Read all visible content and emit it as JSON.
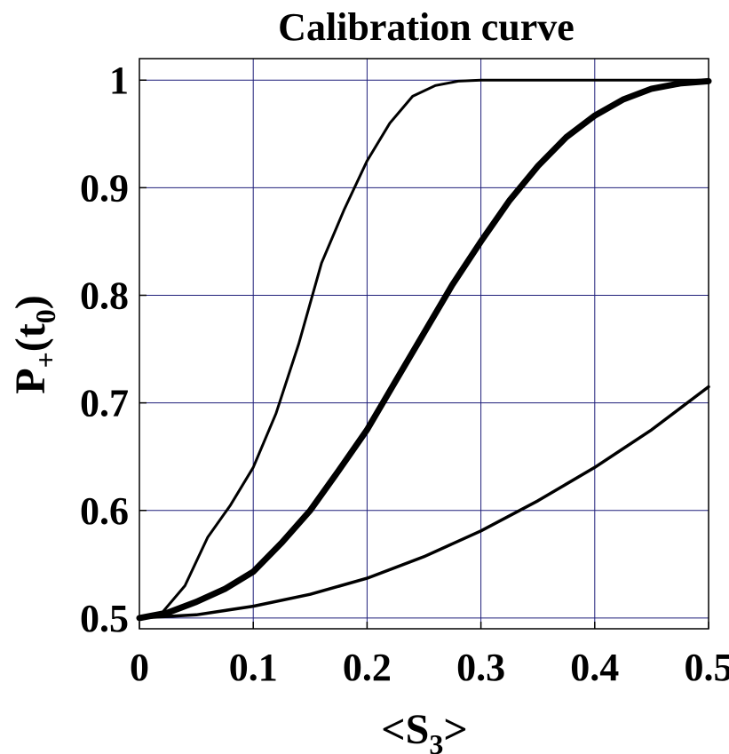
{
  "chart_data": {
    "type": "line",
    "title": "Calibration curve",
    "xlabel": {
      "base": "<S",
      "sub": "3",
      "tail": ">"
    },
    "ylabel": {
      "base": "P",
      "sub": "+",
      "tail": "(t",
      "sub2": "0",
      "tail2": ")"
    },
    "xlim": [
      0,
      0.5
    ],
    "ylim": [
      0.49,
      1.02
    ],
    "grid": true,
    "grid_color": "#1f1f7a",
    "line_color": "#000000",
    "xticks": [
      {
        "value": 0,
        "label": "0"
      },
      {
        "value": 0.1,
        "label": "0.1"
      },
      {
        "value": 0.2,
        "label": "0.2"
      },
      {
        "value": 0.3,
        "label": "0.3"
      },
      {
        "value": 0.4,
        "label": "0.4"
      },
      {
        "value": 0.5,
        "label": "0.5"
      }
    ],
    "yticks": [
      {
        "value": 0.5,
        "label": "0.5"
      },
      {
        "value": 0.6,
        "label": "0.6"
      },
      {
        "value": 0.7,
        "label": "0.7"
      },
      {
        "value": 0.8,
        "label": "0.8"
      },
      {
        "value": 0.9,
        "label": "0.9"
      },
      {
        "value": 1.0,
        "label": "1"
      }
    ],
    "series": [
      {
        "weight": "thin",
        "x": [
          0,
          0.02,
          0.04,
          0.06,
          0.08,
          0.1,
          0.12,
          0.14,
          0.16,
          0.18,
          0.2,
          0.22,
          0.24,
          0.26,
          0.28,
          0.3,
          0.35,
          0.4,
          0.45,
          0.5
        ],
        "y": [
          0.5,
          0.505,
          0.53,
          0.575,
          0.605,
          0.64,
          0.69,
          0.755,
          0.83,
          0.88,
          0.925,
          0.96,
          0.985,
          0.995,
          0.999,
          1.0,
          1.0,
          1.0,
          1.0,
          1.0
        ]
      },
      {
        "weight": "thick",
        "x": [
          0,
          0.025,
          0.05,
          0.075,
          0.1,
          0.125,
          0.15,
          0.175,
          0.2,
          0.225,
          0.25,
          0.275,
          0.3,
          0.325,
          0.35,
          0.375,
          0.4,
          0.425,
          0.45,
          0.475,
          0.5
        ],
        "y": [
          0.5,
          0.505,
          0.515,
          0.527,
          0.543,
          0.57,
          0.6,
          0.637,
          0.675,
          0.72,
          0.765,
          0.81,
          0.85,
          0.888,
          0.92,
          0.947,
          0.967,
          0.982,
          0.992,
          0.997,
          0.999
        ]
      },
      {
        "weight": "medium",
        "x": [
          0,
          0.05,
          0.1,
          0.15,
          0.2,
          0.25,
          0.3,
          0.35,
          0.4,
          0.45,
          0.5
        ],
        "y": [
          0.5,
          0.503,
          0.511,
          0.522,
          0.537,
          0.557,
          0.581,
          0.609,
          0.64,
          0.675,
          0.715
        ]
      }
    ]
  }
}
